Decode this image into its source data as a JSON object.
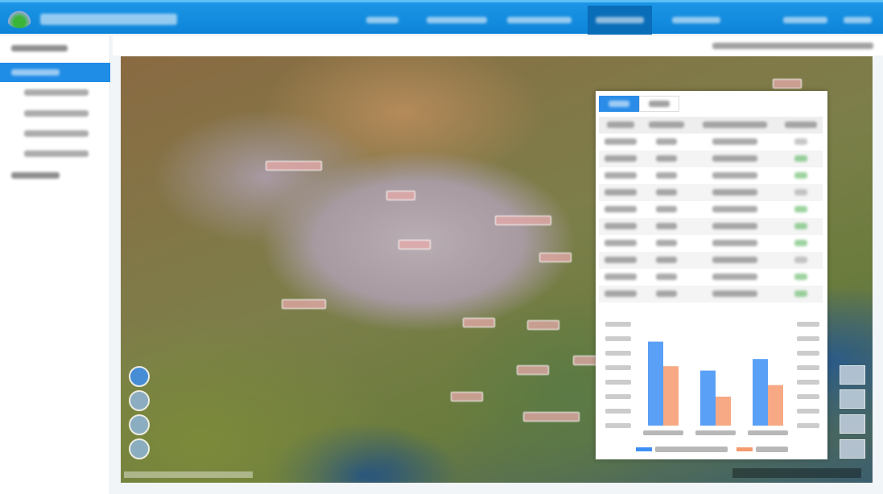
{
  "header": {
    "title": "",
    "nav": [
      {
        "label": ""
      },
      {
        "label": ""
      },
      {
        "label": ""
      },
      {
        "label": ""
      },
      {
        "label": ""
      },
      {
        "label": ""
      },
      {
        "label": ""
      }
    ],
    "active_index": 3
  },
  "sidebar": {
    "items": [
      {
        "label": ""
      },
      {
        "label": ""
      },
      {
        "label": ""
      },
      {
        "label": ""
      },
      {
        "label": ""
      },
      {
        "label": ""
      },
      {
        "label": ""
      }
    ],
    "active_index": 1
  },
  "panel": {
    "tabs": [
      {
        "label": ""
      },
      {
        "label": ""
      }
    ],
    "columns": [
      "",
      "",
      "",
      ""
    ],
    "rows": [
      [
        "",
        "",
        "",
        ""
      ],
      [
        "",
        "",
        "",
        ""
      ],
      [
        "",
        "",
        "",
        ""
      ],
      [
        "",
        "",
        "",
        ""
      ],
      [
        "",
        "",
        "",
        ""
      ],
      [
        "",
        "",
        "",
        ""
      ],
      [
        "",
        "",
        "",
        ""
      ],
      [
        "",
        "",
        "",
        ""
      ],
      [
        "",
        "",
        "",
        ""
      ],
      [
        "",
        "",
        "",
        ""
      ]
    ],
    "trend_colors": [
      "gray",
      "green",
      "green",
      "gray",
      "green",
      "green",
      "green",
      "gray",
      "green",
      "green"
    ]
  },
  "colors": {
    "header": "#1590e3",
    "accent": "#2a8ce8",
    "series_a": "#3d8ff5",
    "series_b": "#f59a6e",
    "trend_up": "#4caf50"
  },
  "chart_data": {
    "type": "bar",
    "categories": [
      "",
      "",
      ""
    ],
    "series": [
      {
        "values": [
          5.8,
          3.8,
          4.6
        ]
      },
      {
        "values": [
          4.1,
          2.0,
          2.8
        ]
      }
    ],
    "ylim": [
      0,
      7
    ],
    "legend": "bottom",
    "grid": false
  }
}
